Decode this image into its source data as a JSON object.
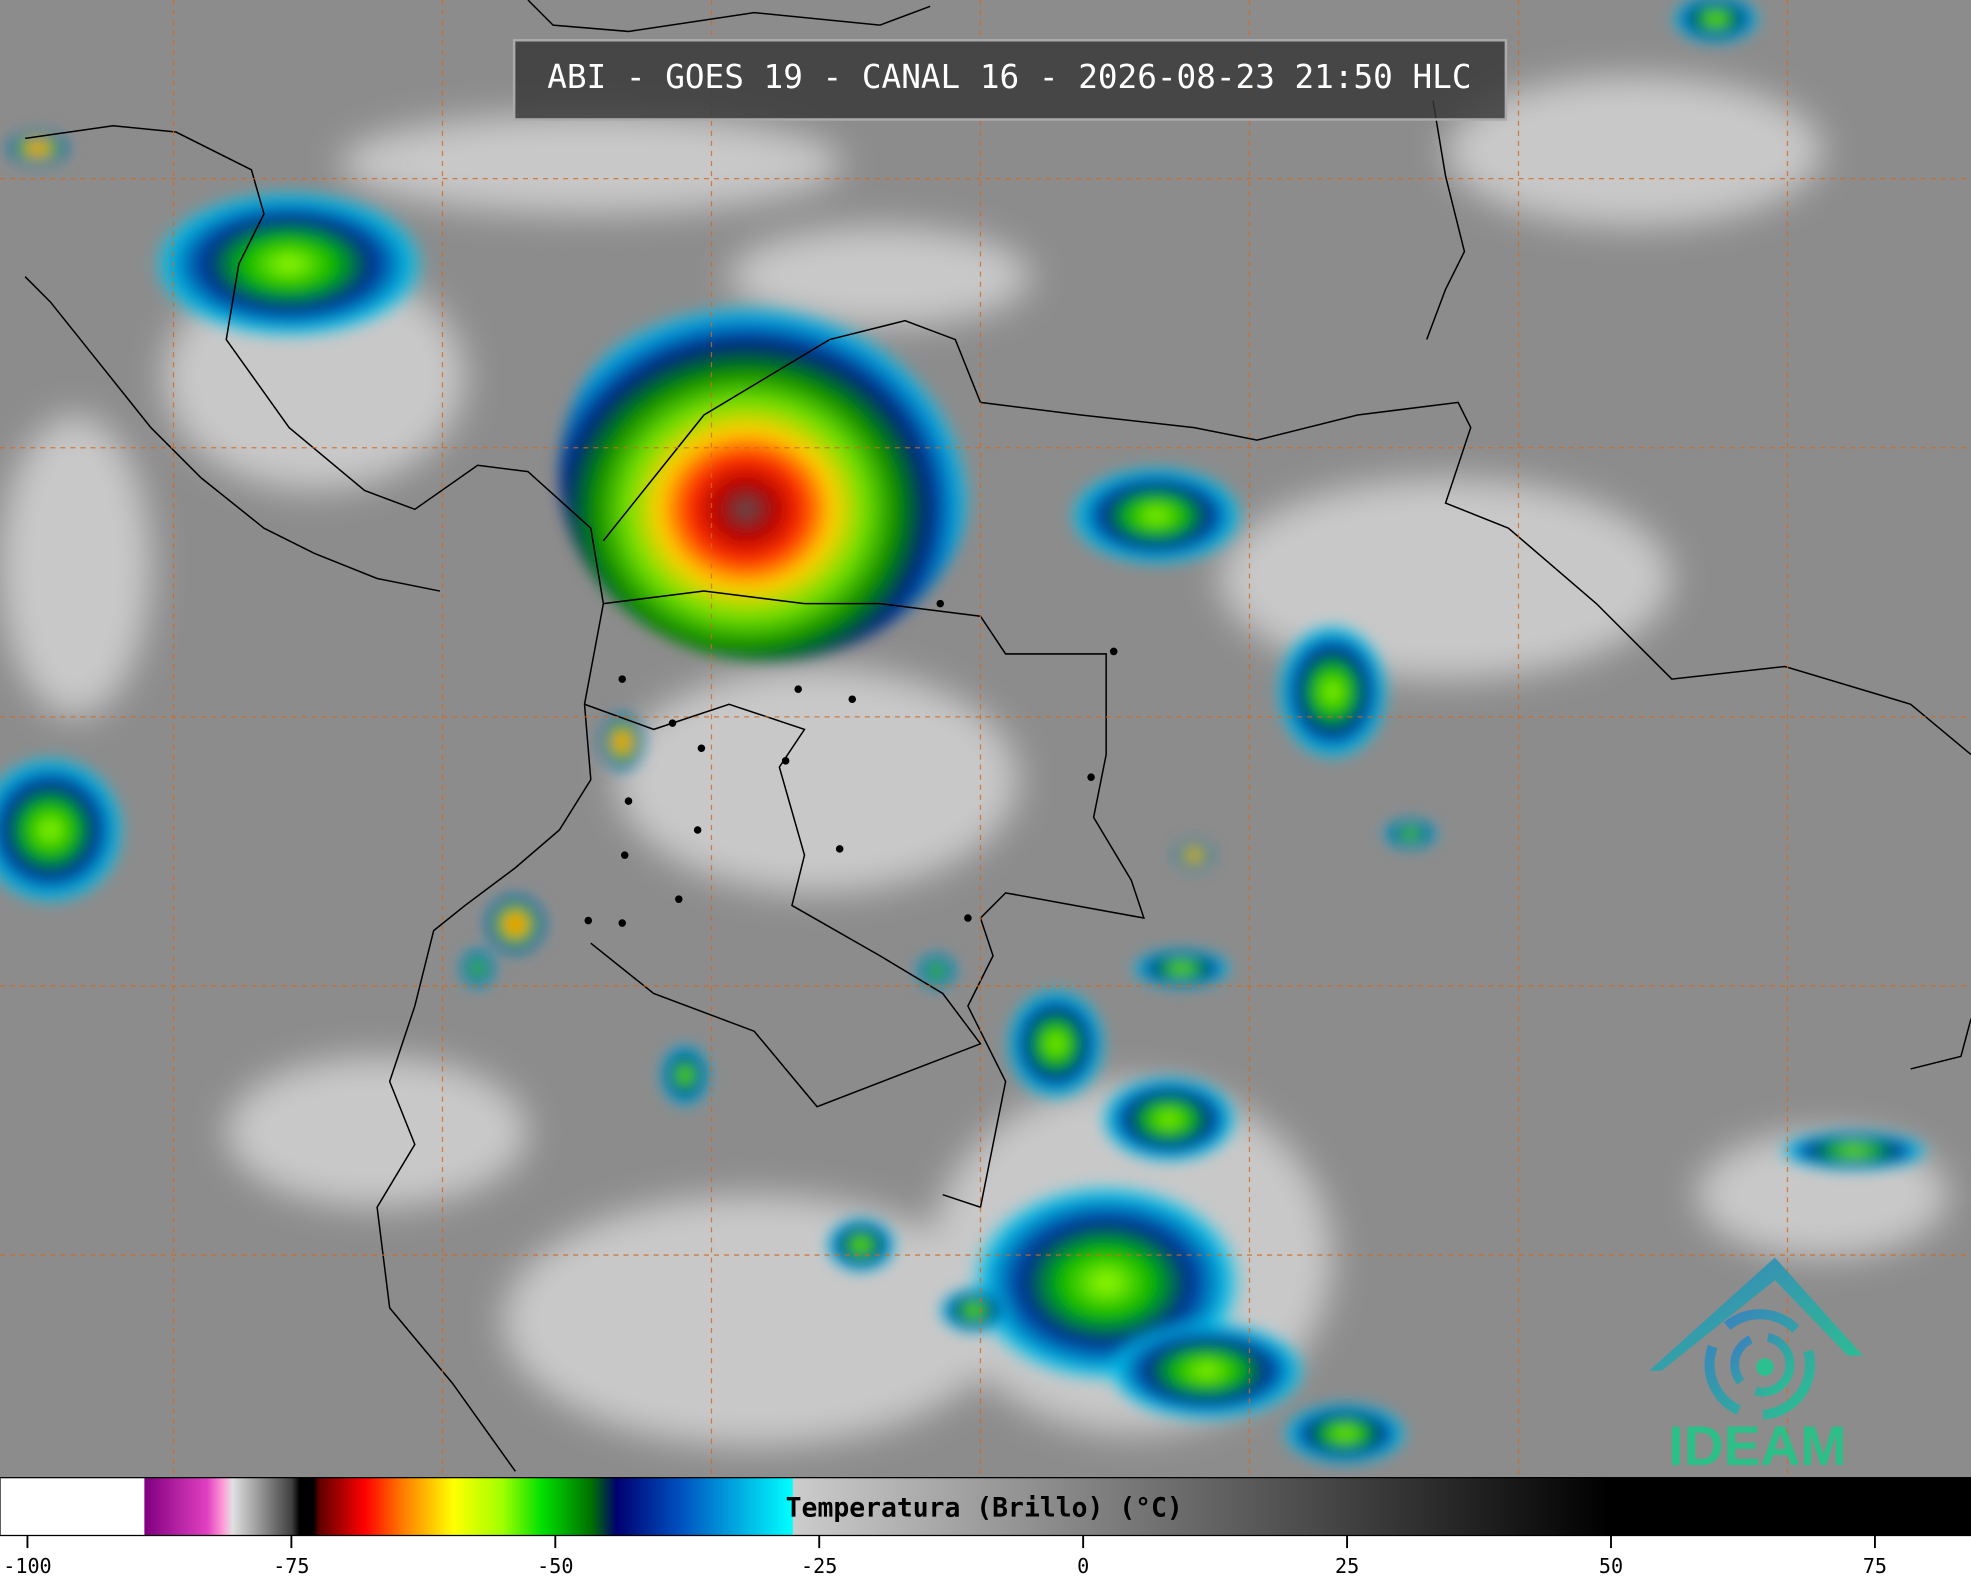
{
  "header": {
    "title": "ABI - GOES 19 - CANAL 16 - 2026-08-23 21:50 HLC"
  },
  "colorbar": {
    "label": "Temperatura (Brillo) (°C)",
    "range": [
      -102.6,
      84.1
    ],
    "ticks": [
      -100,
      -75,
      -50,
      -25,
      0,
      25,
      50,
      75
    ]
  },
  "logo": {
    "text": "IDEAM"
  }
}
